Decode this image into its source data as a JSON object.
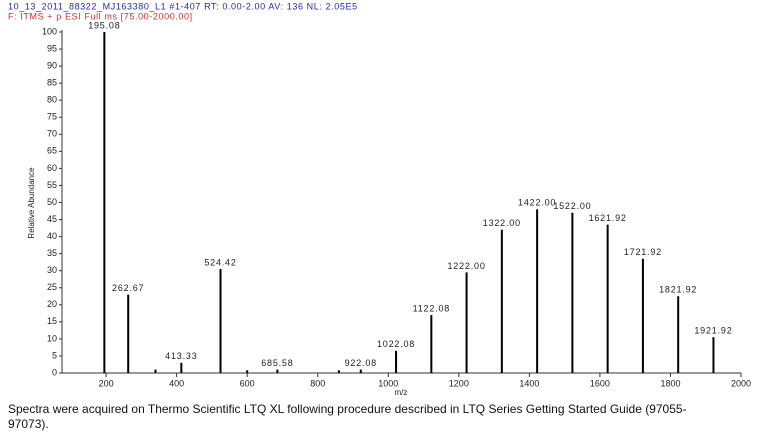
{
  "header": [
    "10_13_2011_88322_MJ163380_L1 #1-407  RT: 0.00-2.00  AV: 136  NL: 2.05E5",
    "F: ITMS + p ESI Full ms [75.00-2000.00]"
  ],
  "chart_data": {
    "type": "bar",
    "y_label": "Relative Abundance",
    "x_label": "m/z",
    "x": [
      195.08,
      262.67,
      340,
      413.33,
      524.42,
      600,
      685.58,
      860,
      922.08,
      1022.08,
      1122.08,
      1222.0,
      1322.0,
      1422.0,
      1522.0,
      1621.92,
      1721.92,
      1821.92,
      1921.92
    ],
    "peak_labels": [
      "195.08",
      "262.67",
      null,
      "413.33",
      "524.42",
      null,
      "685.58",
      null,
      "922.08",
      "1022.08",
      "1122.08",
      "1222.00",
      "1322.00",
      "1422.00",
      "1522.00",
      "1621.92",
      "1721.92",
      "1821.92",
      "1921.92"
    ],
    "values": [
      100,
      23,
      1,
      3,
      30.5,
      0.8,
      1,
      0.8,
      1,
      6.5,
      17,
      29.5,
      42,
      48,
      47,
      43.5,
      33.5,
      22.5,
      10.5
    ],
    "color": "#000000",
    "xlim": [
      75,
      2000
    ],
    "xticks": [
      200,
      400,
      600,
      800,
      1000,
      1200,
      1400,
      1600,
      1800,
      2000
    ],
    "ylim": [
      0,
      100
    ],
    "yticks": [
      0,
      5,
      10,
      15,
      20,
      25,
      30,
      35,
      40,
      45,
      50,
      55,
      60,
      65,
      70,
      75,
      80,
      85,
      90,
      95,
      100
    ]
  },
  "caption": [
    "Spectra were acquired on Thermo Scientific LTQ XL following procedure described in LTQ Series Getting Started Guide (97055-",
    "97073)."
  ]
}
